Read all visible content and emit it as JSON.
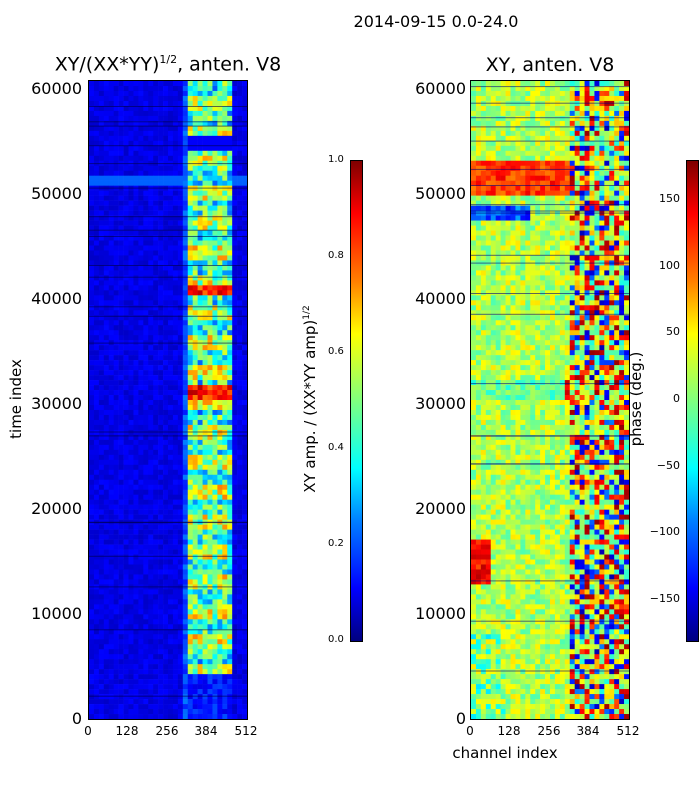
{
  "figure": {
    "suptitle": "2014-09-15 0.0-24.0"
  },
  "colors": {
    "jet": [
      "#00007f",
      "#0000ff",
      "#007fff",
      "#00ffff",
      "#7fff7f",
      "#ffff00",
      "#ff7f00",
      "#ff0000",
      "#7f0000"
    ]
  },
  "chart_data": [
    {
      "type": "heatmap",
      "title": "XY/(XX*YY)",
      "title_exp": "1/2",
      "title_suffix": ", anten. V8",
      "xlabel": "",
      "ylabel": "time index",
      "x_ticks": [
        "0",
        "128",
        "256",
        "384",
        "512"
      ],
      "y_ticks": [
        "0",
        "10000",
        "20000",
        "30000",
        "40000",
        "50000",
        "60000"
      ],
      "xlim": [
        0,
        512
      ],
      "ylim": [
        0,
        61000
      ],
      "colorbar": {
        "label": "XY amp. / (XX*YY amp)",
        "label_exp": "1/2",
        "range": [
          0.0,
          1.0
        ],
        "ticks": [
          "0.0",
          "0.2",
          "0.4",
          "0.6",
          "0.8",
          "1.0"
        ]
      }
    },
    {
      "type": "heatmap",
      "title": "XY, anten. V8",
      "xlabel": "channel index",
      "ylabel": "",
      "x_ticks": [
        "0",
        "128",
        "256",
        "384",
        "512"
      ],
      "y_ticks": [
        "0",
        "10000",
        "20000",
        "30000",
        "40000",
        "50000",
        "60000"
      ],
      "xlim": [
        0,
        512
      ],
      "ylim": [
        0,
        61000
      ],
      "colorbar": {
        "label": "phase (deg.)",
        "range": [
          -180,
          180
        ],
        "ticks": [
          "−150",
          "−100",
          "−50",
          "0",
          "50",
          "100",
          "150"
        ]
      }
    }
  ]
}
